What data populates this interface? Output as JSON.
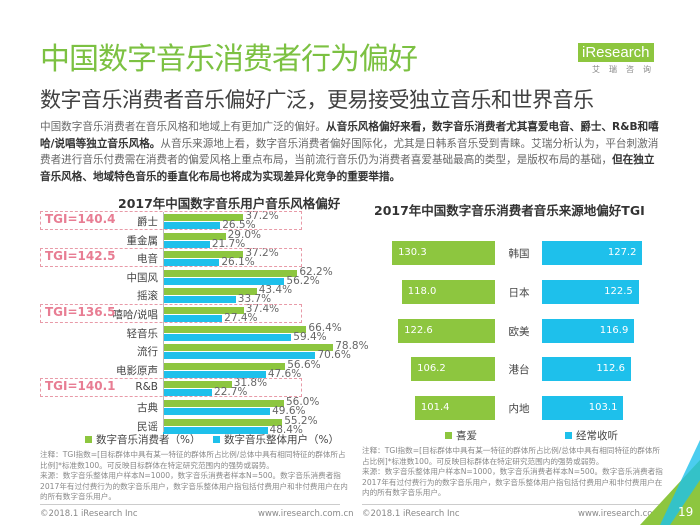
{
  "header": {
    "title": "中国数字音乐消费者行为偏好",
    "subtitle": "数字音乐消费者音乐偏好广泛，更易接受独立音乐和世界音乐",
    "logo": {
      "brand": "iResearch",
      "cn": "艾瑞咨询"
    }
  },
  "paragraph": [
    {
      "text": "中国数字音乐消费者在音乐风格和地域上有更加广泛的偏好。",
      "bold": false
    },
    {
      "text": "从音乐风格偏好来看，数字音乐消费者尤其喜爱电音、爵士、R&B和嘻哈/说唱等独立音乐风格。",
      "bold": true
    },
    {
      "text": "从音乐来源地上看，数字音乐消费者偏好国际化，尤其是日韩系音乐受到青睐。艾瑞分析认为，平台刺激消费者进行音乐付费需在消费者的偏爱风格上重点布局，当前流行音乐仍为消费者喜爱基础最高的类型，是版权布局的基础，",
      "bold": false
    },
    {
      "text": "但在独立音乐风格、地域特色音乐的垂直化布局也将成为实现差异化竞争的重要举措。",
      "bold": true
    }
  ],
  "chart_data": [
    {
      "type": "bar",
      "orientation": "horizontal",
      "title": "2017年中国数字音乐用户音乐风格偏好",
      "categories": [
        "爵士",
        "重金属",
        "电音",
        "中国风",
        "摇滚",
        "嘻哈/说唱",
        "轻音乐",
        "流行",
        "电影原声",
        "R&B",
        "古典",
        "民谣"
      ],
      "series": [
        {
          "name": "数字音乐消费者（%）",
          "color": "#8dc63f",
          "values": [
            37.2,
            29.0,
            37.2,
            62.2,
            43.4,
            37.4,
            66.4,
            78.8,
            56.6,
            31.8,
            56.0,
            55.2
          ]
        },
        {
          "name": "数字音乐整体用户（%）",
          "color": "#1ec0eb",
          "values": [
            26.5,
            21.7,
            26.1,
            56.2,
            33.7,
            27.4,
            59.4,
            70.6,
            47.6,
            22.7,
            49.6,
            48.4
          ]
        }
      ],
      "annotations": [
        {
          "category": "爵士",
          "text": "TGI=140.4"
        },
        {
          "category": "电音",
          "text": "TGI=142.5"
        },
        {
          "category": "嘻哈/说唱",
          "text": "TGI=136.5"
        },
        {
          "category": "R&B",
          "text": "TGI=140.1"
        }
      ]
    },
    {
      "type": "bar",
      "orientation": "butterfly",
      "title": "2017年中国数字音乐消费者音乐来源地偏好TGI",
      "categories": [
        "韩国",
        "日本",
        "欧美",
        "港台",
        "内地"
      ],
      "series": [
        {
          "name": "喜爱",
          "color": "#8dc63f",
          "values": [
            130.3,
            118.0,
            122.6,
            106.2,
            101.4
          ]
        },
        {
          "name": "经常收听",
          "color": "#1ec0eb",
          "values": [
            127.2,
            122.5,
            116.9,
            112.6,
            103.1
          ]
        }
      ]
    }
  ],
  "notes": {
    "tgi": "注释：TGI指数=[目标群体中具有某一特征的群体所占比例/总体中具有相同特征的群体所占比例]*标准数100。可反映目标群体在特定研究范围内的强势或弱势。",
    "source": "来源：数字音乐整体用户样本N=1000，数字音乐消费者样本N=500。数字音乐消费者指2017年有过付费行为的数字音乐用户，数字音乐整体用户指包括付费用户和非付费用户在内的所有数字音乐用户。"
  },
  "footer": {
    "copyright": "©2018.1 iResearch Inc",
    "url": "www.iresearch.com.cn",
    "page": "19"
  }
}
